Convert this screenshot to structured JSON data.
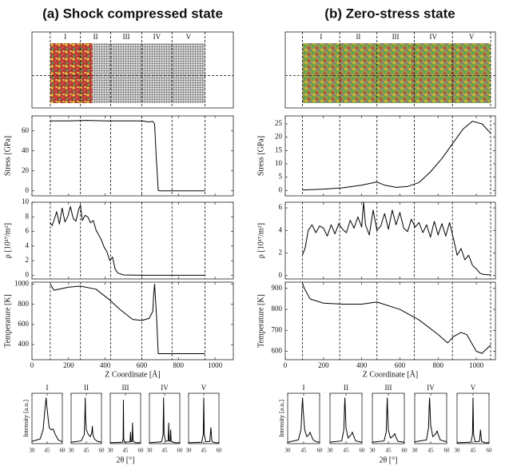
{
  "columns": [
    {
      "title": "(a) Shock compressed state",
      "regions": [
        "I",
        "II",
        "III",
        "IV",
        "V"
      ]
    },
    {
      "title": "(b) Zero-stress state",
      "regions": [
        "I",
        "II",
        "III",
        "IV",
        "V"
      ]
    }
  ],
  "chart_data": [
    {
      "type": "line",
      "ylabel": "Stress [GPa]",
      "xlim": [
        0,
        1100
      ],
      "xticks": [
        0,
        200,
        400,
        600,
        800,
        1000
      ],
      "ylim": [
        -5,
        75
      ],
      "yticks": [
        0,
        20,
        40,
        60
      ],
      "vlines": [
        100,
        265,
        430,
        600,
        765,
        945
      ],
      "color": "#000000",
      "x": [
        100,
        105,
        200,
        300,
        400,
        500,
        600,
        640,
        660,
        670,
        680,
        690,
        700,
        800,
        945
      ],
      "values": [
        69,
        70,
        70,
        70.5,
        70,
        70,
        70,
        69,
        69.5,
        67,
        30,
        0.5,
        0,
        0,
        0
      ]
    },
    {
      "type": "line",
      "ylabel": "ρ [10¹⁷/m²]",
      "xlim": [
        0,
        1100
      ],
      "xticks": [
        0,
        200,
        400,
        600,
        800,
        1000
      ],
      "ylim": [
        -0.5,
        10
      ],
      "yticks": [
        0,
        2,
        4,
        6,
        8,
        10
      ],
      "vlines": [
        100,
        265,
        430,
        600,
        765,
        945
      ],
      "color": "#000000",
      "x": [
        100,
        110,
        120,
        135,
        150,
        165,
        180,
        195,
        210,
        225,
        240,
        255,
        265,
        275,
        290,
        305,
        320,
        335,
        350,
        365,
        380,
        395,
        410,
        425,
        440,
        455,
        470,
        500,
        600,
        700,
        800,
        945
      ],
      "values": [
        7.2,
        6.8,
        7.5,
        8.7,
        7,
        9.2,
        7.3,
        8,
        9.4,
        7.8,
        7.4,
        9,
        9.6,
        7.5,
        8.2,
        8,
        7.2,
        7.5,
        6.2,
        5.5,
        4.8,
        3.8,
        3.2,
        2,
        2.5,
        0.8,
        0.3,
        0.05,
        0,
        0,
        0,
        0
      ]
    },
    {
      "type": "line",
      "ylabel": "Temperature [K]",
      "xlabel": "Z Coordinate [Å]",
      "xtick_labels": true,
      "xlim": [
        0,
        1100
      ],
      "xticks": [
        0,
        200,
        400,
        600,
        800,
        1000
      ],
      "ylim": [
        250,
        1020
      ],
      "yticks": [
        400,
        600,
        800,
        1000
      ],
      "vlines": [
        100,
        265,
        430,
        600,
        765,
        945
      ],
      "color": "#000000",
      "x": [
        100,
        120,
        200,
        265,
        350,
        420,
        480,
        550,
        600,
        640,
        660,
        665,
        670,
        680,
        690,
        800,
        945
      ],
      "values": [
        1000,
        940,
        970,
        980,
        950,
        850,
        750,
        650,
        640,
        660,
        730,
        900,
        1000,
        700,
        310,
        310,
        310
      ]
    },
    {
      "type": "line",
      "ylabel": "Stress [GPa]",
      "xlim": [
        0,
        1100
      ],
      "xticks": [
        0,
        200,
        400,
        600,
        800,
        1000
      ],
      "ylim": [
        -2,
        28
      ],
      "yticks": [
        0,
        5,
        10,
        15,
        20,
        25
      ],
      "vlines": [
        90,
        285,
        480,
        675,
        875,
        1075
      ],
      "color": "#000000",
      "x": [
        90,
        100,
        200,
        300,
        400,
        480,
        520,
        580,
        640,
        700,
        760,
        820,
        880,
        930,
        980,
        1030,
        1075
      ],
      "values": [
        0.3,
        0.2,
        0.5,
        1,
        2,
        3.2,
        2,
        1.2,
        1.5,
        3,
        7,
        12,
        18,
        23,
        26,
        25,
        21.5
      ]
    },
    {
      "type": "line",
      "ylabel": "ρ [10¹⁷/m²]",
      "xlim": [
        0,
        1100
      ],
      "xticks": [
        0,
        200,
        400,
        600,
        800,
        1000
      ],
      "ylim": [
        -0.3,
        6.5
      ],
      "yticks": [
        0,
        2,
        4,
        6
      ],
      "vlines": [
        90,
        285,
        480,
        675,
        875,
        1075
      ],
      "color": "#000000",
      "x": [
        90,
        105,
        120,
        140,
        160,
        180,
        200,
        220,
        240,
        260,
        280,
        300,
        320,
        340,
        360,
        380,
        400,
        410,
        420,
        440,
        460,
        480,
        500,
        520,
        540,
        560,
        580,
        600,
        620,
        640,
        660,
        680,
        700,
        720,
        740,
        760,
        780,
        800,
        820,
        840,
        860,
        880,
        900,
        920,
        940,
        960,
        980,
        1000,
        1020,
        1040,
        1075
      ],
      "values": [
        1.8,
        2.5,
        4,
        4.5,
        3.8,
        4.4,
        4.2,
        3.5,
        4.5,
        3.7,
        4.6,
        4.1,
        3.8,
        4.9,
        4.2,
        5.2,
        4.3,
        6.5,
        4.5,
        3.6,
        5.8,
        4,
        4.4,
        5.5,
        4.1,
        5.8,
        4.5,
        5.6,
        4.2,
        3.9,
        5,
        4.3,
        4.7,
        3.8,
        4.5,
        3.4,
        4.8,
        3.6,
        4.6,
        3.5,
        4.7,
        3.3,
        1.8,
        2.4,
        1.4,
        1.8,
        0.9,
        0.6,
        0.2,
        0.1,
        0.05
      ]
    },
    {
      "type": "line",
      "ylabel": "Temperature [K]",
      "xlabel": "Z Coordinate [Å]",
      "xtick_labels": true,
      "xlim": [
        0,
        1100
      ],
      "xticks": [
        0,
        200,
        400,
        600,
        800,
        1000
      ],
      "ylim": [
        560,
        930
      ],
      "yticks": [
        600,
        700,
        800,
        900
      ],
      "vlines": [
        90,
        285,
        480,
        675,
        875,
        1075
      ],
      "color": "#000000",
      "x": [
        90,
        100,
        130,
        200,
        300,
        400,
        480,
        600,
        700,
        800,
        850,
        880,
        920,
        950,
        1000,
        1030,
        1075
      ],
      "values": [
        925,
        900,
        850,
        830,
        825,
        825,
        835,
        800,
        750,
        680,
        640,
        670,
        690,
        680,
        600,
        590,
        630
      ]
    },
    {
      "type": "line",
      "title": "I",
      "ylabel": "Intensity [a.u.]",
      "xtick_labels": true,
      "xlim": [
        30,
        60
      ],
      "xticks": [
        30,
        45,
        60
      ],
      "ylim": [
        0,
        1.1
      ],
      "color": "#000000",
      "x": [
        30,
        38,
        41,
        43,
        44,
        45,
        47,
        49,
        51,
        53,
        56,
        60
      ],
      "values": [
        0.05,
        0.1,
        0.3,
        0.8,
        1,
        0.75,
        0.35,
        0.3,
        0.32,
        0.2,
        0.08,
        0.04
      ]
    },
    {
      "type": "line",
      "title": "II",
      "xtick_labels": true,
      "xlim": [
        30,
        60
      ],
      "xticks": [
        30,
        45,
        60
      ],
      "ylim": [
        0,
        1.1
      ],
      "color": "#000000",
      "x": [
        30,
        40,
        43,
        43.7,
        44,
        44.3,
        45,
        47,
        49,
        50.5,
        51,
        51.5,
        53,
        56,
        60
      ],
      "values": [
        0.03,
        0.06,
        0.2,
        0.7,
        1,
        0.6,
        0.3,
        0.2,
        0.15,
        0.25,
        0.38,
        0.2,
        0.1,
        0.05,
        0.03
      ]
    },
    {
      "type": "line",
      "title": "III",
      "xlabel": "2θ [°]",
      "xtick_labels": true,
      "xlim": [
        30,
        60
      ],
      "xticks": [
        30,
        45,
        60
      ],
      "ylim": [
        0,
        1.1
      ],
      "color": "#000000",
      "x": [
        30,
        42,
        42.7,
        43,
        43.3,
        44,
        49.5,
        50,
        50.5,
        51.5,
        52,
        52.5,
        55,
        60
      ],
      "values": [
        0.02,
        0.03,
        0.1,
        0.95,
        0.1,
        0.03,
        0.04,
        0.25,
        0.04,
        0.05,
        0.45,
        0.05,
        0.02,
        0.02
      ]
    },
    {
      "type": "line",
      "title": "IV",
      "xtick_labels": true,
      "xlim": [
        30,
        60
      ],
      "xticks": [
        30,
        45,
        60
      ],
      "ylim": [
        0,
        1.1
      ],
      "color": "#000000",
      "x": [
        30,
        42,
        43.5,
        44,
        44.5,
        46,
        48.5,
        49,
        49.5,
        50.5,
        51,
        51.5,
        55,
        60
      ],
      "values": [
        0.02,
        0.04,
        0.2,
        1,
        0.2,
        0.05,
        0.06,
        0.45,
        0.06,
        0.05,
        0.3,
        0.05,
        0.02,
        0.02
      ]
    },
    {
      "type": "line",
      "title": "V",
      "xtick_labels": true,
      "xlim": [
        30,
        60
      ],
      "xticks": [
        30,
        45,
        60
      ],
      "ylim": [
        0,
        1.1
      ],
      "color": "#000000",
      "x": [
        30,
        43,
        44.5,
        45,
        45.5,
        47,
        51,
        52,
        53,
        56,
        60
      ],
      "values": [
        0.02,
        0.03,
        0.2,
        1,
        0.2,
        0.04,
        0.05,
        0.35,
        0.05,
        0.02,
        0.02
      ]
    },
    {
      "type": "line",
      "title": "I",
      "ylabel": "Intensity [a.u.]",
      "xtick_labels": true,
      "xlim": [
        30,
        60
      ],
      "xticks": [
        30,
        45,
        60
      ],
      "ylim": [
        0,
        1.1
      ],
      "color": "#000000",
      "x": [
        30,
        40,
        42.5,
        43.5,
        44,
        44.5,
        46,
        48,
        50,
        51,
        52,
        54,
        57,
        60
      ],
      "values": [
        0.03,
        0.08,
        0.3,
        0.8,
        1,
        0.75,
        0.3,
        0.15,
        0.2,
        0.25,
        0.18,
        0.08,
        0.04,
        0.03
      ]
    },
    {
      "type": "line",
      "title": "II",
      "xtick_labels": true,
      "xlim": [
        30,
        60
      ],
      "xticks": [
        30,
        45,
        60
      ],
      "ylim": [
        0,
        1.1
      ],
      "color": "#000000",
      "x": [
        30,
        41,
        43,
        43.7,
        44,
        44.3,
        45,
        47,
        50,
        51,
        52,
        54,
        60
      ],
      "values": [
        0.03,
        0.06,
        0.3,
        0.85,
        1,
        0.8,
        0.35,
        0.12,
        0.2,
        0.25,
        0.18,
        0.06,
        0.03
      ]
    },
    {
      "type": "line",
      "title": "III",
      "xlabel": "2θ [°]",
      "xtick_labels": true,
      "xlim": [
        30,
        60
      ],
      "xticks": [
        30,
        45,
        60
      ],
      "ylim": [
        0,
        1.1
      ],
      "color": "#000000",
      "x": [
        30,
        41,
        43,
        43.7,
        44,
        44.3,
        45,
        47,
        50,
        51,
        52,
        54,
        60
      ],
      "values": [
        0.03,
        0.06,
        0.25,
        0.8,
        1,
        0.75,
        0.3,
        0.12,
        0.18,
        0.22,
        0.15,
        0.05,
        0.03
      ]
    },
    {
      "type": "line",
      "title": "IV",
      "xtick_labels": true,
      "xlim": [
        30,
        60
      ],
      "xticks": [
        30,
        45,
        60
      ],
      "ylim": [
        0,
        1.1
      ],
      "color": "#000000",
      "x": [
        30,
        41,
        43,
        43.7,
        44,
        44.3,
        45,
        47,
        50,
        51,
        52,
        54,
        60
      ],
      "values": [
        0.04,
        0.08,
        0.35,
        0.9,
        1,
        0.8,
        0.4,
        0.15,
        0.22,
        0.28,
        0.2,
        0.08,
        0.04
      ]
    },
    {
      "type": "line",
      "title": "V",
      "xtick_labels": true,
      "xlim": [
        30,
        60
      ],
      "xticks": [
        30,
        45,
        60
      ],
      "ylim": [
        0,
        1.1
      ],
      "color": "#000000",
      "x": [
        30,
        43,
        44.5,
        45,
        45.5,
        47,
        51,
        52,
        53,
        56,
        60
      ],
      "values": [
        0.02,
        0.03,
        0.2,
        1,
        0.2,
        0.04,
        0.05,
        0.3,
        0.05,
        0.02,
        0.02
      ]
    }
  ]
}
